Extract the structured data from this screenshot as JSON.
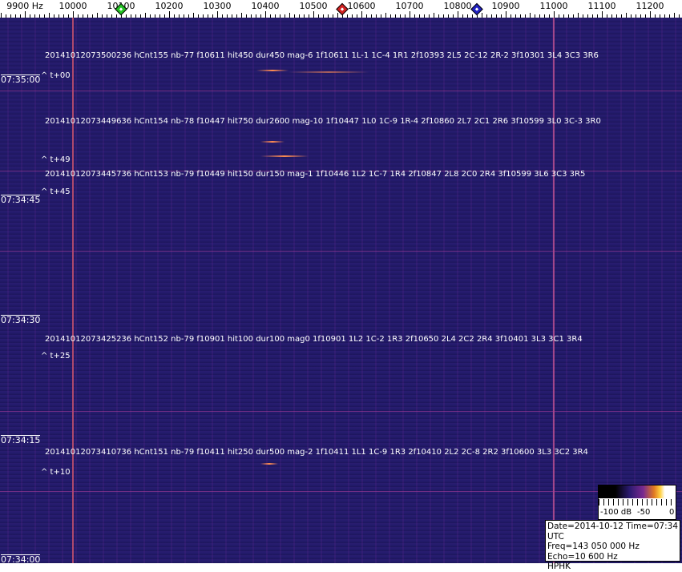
{
  "chart_data": {
    "type": "heatmap",
    "title": "",
    "x_axis": {
      "unit_label": "9900 Hz",
      "tick_labels": [
        "10000",
        "10100",
        "10200",
        "10300",
        "10400",
        "10500",
        "10600",
        "10700",
        "10800",
        "10900",
        "11000",
        "11100",
        "11200"
      ],
      "range_hz": [
        9850,
        11270
      ]
    },
    "y_axis": {
      "tick_labels": [
        "07:35:00",
        "07:34:45",
        "07:34:30",
        "07:34:15",
        "07:34:00"
      ],
      "range_time": [
        "07:35:07",
        "07:34:00"
      ]
    },
    "markers": [
      {
        "freq": 10100,
        "color": "#22c022"
      },
      {
        "freq": 10560,
        "color": "#d02020"
      },
      {
        "freq": 10840,
        "color": "#2020c0"
      }
    ],
    "bright_lines_hz": [
      10000,
      11000
    ],
    "events": [
      {
        "text": "20141012073500236 hCnt155 nb-77 f10611 hit450 dur450 mag-6 1f10611 1L-1 1C-4 1R1 2f10393 2L5 2C-12 2R-2 3f10301 3L4 3C3 3R6",
        "offset": "^ t+00",
        "time_s": 0
      },
      {
        "text": "20141012073449636 hCnt154 nb-78 f10447 hit750 dur2600 mag-10 1f10447 1L0 1C-9 1R-4 2f10860 2L7 2C1 2R6 3f10599 3L0 3C-3 3R0",
        "offset": "^ t+49",
        "time_s": -11
      },
      {
        "text": "20141012073445736 hCnt153 nb-79 f10449 hit150 dur150 mag-1 1f10446 1L2 1C-7 1R4 2f10847 2L8 2C0 2R4 3f10599 3L6 3C3 3R5",
        "offset": "^ t+45",
        "time_s": -15
      },
      {
        "text": "20141012073425236 hCnt152 nb-79 f10901 hit100 dur100 mag0 1f10901 1L2 1C-2 1R3 2f10650 2L4 2C2 2R4 3f10401 3L3 3C1 3R4",
        "offset": "^ t+25",
        "time_s": -35
      },
      {
        "text": "20141012073410736 hCnt151 nb-79 f10411 hit250 dur500 mag-2 1f10411 1L1 1C-9 1R3 2f10410 2L2 2C-8 2R2 3f10600 3L3 3C2 3R4",
        "offset": "^ t+10",
        "time_s": -50
      }
    ],
    "colorbar": {
      "labels": [
        "-100 dB",
        "-50",
        "0"
      ],
      "range_db": [
        -100,
        0
      ]
    },
    "grid": false
  },
  "info": {
    "line1": "Date=2014-10-12 Time=07:34 UTC",
    "line2": "Freq=143 050 000 Hz",
    "line3": "Echo=10 600 Hz",
    "line4": "HPHK"
  }
}
